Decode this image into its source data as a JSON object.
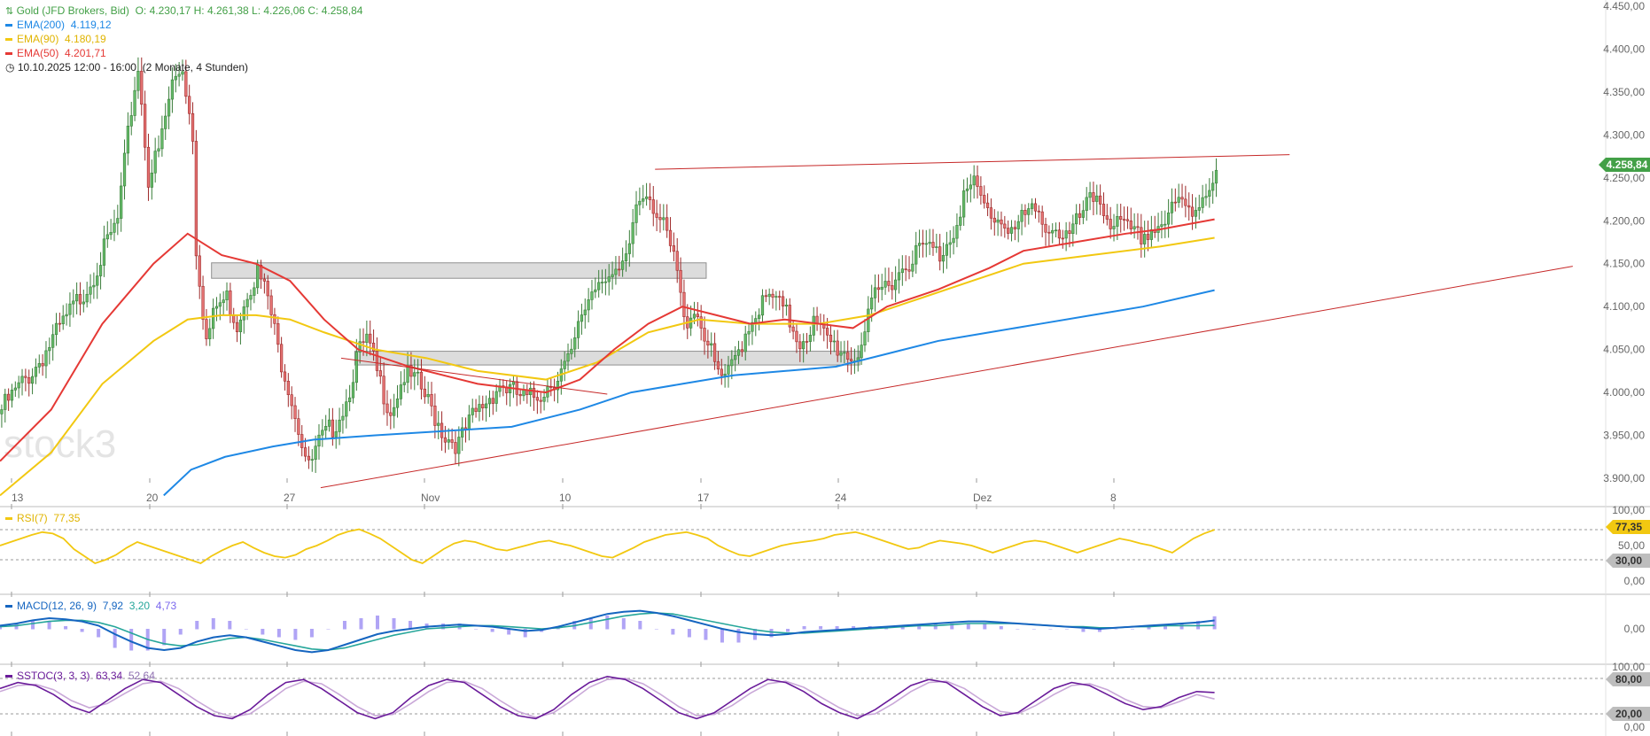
{
  "legend": {
    "instrument": "Gold (JFD Brokers, Bid)",
    "ohlc": "O: 4.230,17  H: 4.261,38  L: 4.226,06  C: 4.258,84",
    "ema200": {
      "label": "EMA(200)",
      "value": "4.119,12",
      "color": "#1e88e5"
    },
    "ema90": {
      "label": "EMA(90)",
      "value": "4.180,19",
      "color": "#f2c811"
    },
    "ema50": {
      "label": "EMA(50)",
      "value": "4.201,71",
      "color": "#e53935"
    },
    "period": "10.10.2025 12:00 - 16:00",
    "span": "(2 Monate, 4 Stunden)"
  },
  "watermark": "stock3",
  "price_badge": "4.258,84",
  "price_labels": [
    "4.450,00",
    "4.400,00",
    "4.350,00",
    "4.300,00",
    "4.250,00",
    "4.200,00",
    "4.150,00",
    "4.100,00",
    "4.050,00",
    "4.000,00",
    "3.950,00",
    "3.900,00"
  ],
  "x_labels": [
    "13",
    "20",
    "27",
    "Nov",
    "10",
    "17",
    "24",
    "Dez",
    "8"
  ],
  "rsi": {
    "label": "RSI(7)",
    "value": "77,35",
    "badge": "77,35",
    "levels": [
      "100,00",
      "50,00",
      "30,00",
      "0,00"
    ],
    "level_badge": "30,00"
  },
  "macd": {
    "label": "MACD(12, 26, 9)",
    "v1": "7,92",
    "v2": "3,20",
    "v3": "4,73",
    "zero": "0,00"
  },
  "sstoc": {
    "label": "SSTOC(3, 3, 3)",
    "v1": "63,34",
    "v2": "52,64",
    "levels": [
      "100,00",
      "80,00",
      "20,00",
      "0,00"
    ]
  },
  "chart_data": {
    "type": "line",
    "title": "Gold (JFD Brokers, Bid)",
    "price_axis": {
      "min": 3900,
      "max": 4450,
      "step": 50,
      "side": "right"
    },
    "x_axis": [
      "13",
      "20",
      "27",
      "Nov",
      "10",
      "17",
      "24",
      "Dez",
      "8"
    ],
    "close_path": [
      [
        0,
        3980
      ],
      [
        10,
        4030
      ],
      [
        18,
        4080
      ],
      [
        26,
        4130
      ],
      [
        34,
        4200
      ],
      [
        38,
        4330
      ],
      [
        40,
        4380
      ],
      [
        43,
        4250
      ],
      [
        46,
        4280
      ],
      [
        50,
        4360
      ],
      [
        53,
        4380
      ],
      [
        56,
        4300
      ],
      [
        57,
        4170
      ],
      [
        60,
        4060
      ],
      [
        63,
        4100
      ],
      [
        66,
        4110
      ],
      [
        69,
        4080
      ],
      [
        72,
        4120
      ],
      [
        75,
        4140
      ],
      [
        78,
        4110
      ],
      [
        81,
        4050
      ],
      [
        84,
        4010
      ],
      [
        87,
        3960
      ],
      [
        90,
        3910
      ],
      [
        93,
        3940
      ],
      [
        97,
        3960
      ],
      [
        101,
        3990
      ],
      [
        104,
        4040
      ],
      [
        107,
        4060
      ],
      [
        111,
        4010
      ],
      [
        114,
        3980
      ],
      [
        118,
        4020
      ],
      [
        122,
        4010
      ],
      [
        126,
        3980
      ],
      [
        130,
        3950
      ],
      [
        134,
        3940
      ],
      [
        138,
        3970
      ],
      [
        142,
        3990
      ],
      [
        146,
        4010
      ],
      [
        150,
        4000
      ],
      [
        154,
        3990
      ],
      [
        158,
        4000
      ],
      [
        163,
        4020
      ],
      [
        167,
        4040
      ],
      [
        170,
        4090
      ],
      [
        173,
        4120
      ],
      [
        176,
        4140
      ],
      [
        180,
        4130
      ],
      [
        183,
        4150
      ],
      [
        186,
        4220
      ],
      [
        189,
        4240
      ],
      [
        192,
        4210
      ],
      [
        195,
        4180
      ],
      [
        198,
        4140
      ],
      [
        200,
        4080
      ],
      [
        203,
        4100
      ],
      [
        206,
        4070
      ],
      [
        209,
        4030
      ],
      [
        212,
        4010
      ],
      [
        215,
        4040
      ],
      [
        219,
        4080
      ],
      [
        222,
        4100
      ],
      [
        226,
        4110
      ],
      [
        230,
        4090
      ],
      [
        234,
        4060
      ],
      [
        238,
        4080
      ],
      [
        242,
        4060
      ],
      [
        246,
        4050
      ],
      [
        250,
        4040
      ],
      [
        253,
        4070
      ],
      [
        256,
        4110
      ],
      [
        260,
        4130
      ],
      [
        263,
        4140
      ],
      [
        267,
        4160
      ],
      [
        271,
        4170
      ],
      [
        275,
        4160
      ],
      [
        279,
        4190
      ],
      [
        282,
        4230
      ],
      [
        285,
        4240
      ],
      [
        289,
        4210
      ],
      [
        293,
        4200
      ],
      [
        297,
        4190
      ],
      [
        301,
        4210
      ],
      [
        305,
        4200
      ],
      [
        309,
        4190
      ],
      [
        313,
        4180
      ],
      [
        317,
        4210
      ],
      [
        321,
        4230
      ],
      [
        325,
        4200
      ],
      [
        329,
        4190
      ],
      [
        333,
        4180
      ],
      [
        337,
        4190
      ],
      [
        341,
        4200
      ],
      [
        345,
        4220
      ],
      [
        349,
        4210
      ],
      [
        352,
        4230
      ],
      [
        356,
        4258.84
      ]
    ],
    "series": [
      {
        "name": "EMA(200)",
        "color": "#1e88e5",
        "points": [
          [
            48,
            3880
          ],
          [
            56,
            3910
          ],
          [
            66,
            3925
          ],
          [
            80,
            3937
          ],
          [
            92,
            3945
          ],
          [
            110,
            3950
          ],
          [
            130,
            3955
          ],
          [
            150,
            3960
          ],
          [
            170,
            3980
          ],
          [
            185,
            4000
          ],
          [
            200,
            4010
          ],
          [
            215,
            4020
          ],
          [
            230,
            4025
          ],
          [
            245,
            4030
          ],
          [
            260,
            4045
          ],
          [
            275,
            4060
          ],
          [
            290,
            4070
          ],
          [
            305,
            4080
          ],
          [
            320,
            4090
          ],
          [
            335,
            4100
          ],
          [
            356,
            4119.12
          ]
        ]
      },
      {
        "name": "EMA(90)",
        "color": "#f2c811",
        "points": [
          [
            0,
            3880
          ],
          [
            15,
            3930
          ],
          [
            30,
            4010
          ],
          [
            45,
            4060
          ],
          [
            55,
            4085
          ],
          [
            65,
            4090
          ],
          [
            75,
            4090
          ],
          [
            85,
            4085
          ],
          [
            95,
            4070
          ],
          [
            110,
            4050
          ],
          [
            125,
            4040
          ],
          [
            140,
            4025
          ],
          [
            160,
            4015
          ],
          [
            175,
            4035
          ],
          [
            190,
            4070
          ],
          [
            205,
            4085
          ],
          [
            220,
            4080
          ],
          [
            240,
            4080
          ],
          [
            255,
            4090
          ],
          [
            270,
            4110
          ],
          [
            285,
            4130
          ],
          [
            300,
            4150
          ],
          [
            320,
            4160
          ],
          [
            340,
            4170
          ],
          [
            356,
            4180.19
          ]
        ]
      },
      {
        "name": "EMA(50)",
        "color": "#e53935",
        "points": [
          [
            0,
            3920
          ],
          [
            15,
            3980
          ],
          [
            30,
            4080
          ],
          [
            45,
            4150
          ],
          [
            55,
            4185
          ],
          [
            65,
            4160
          ],
          [
            75,
            4150
          ],
          [
            85,
            4130
          ],
          [
            95,
            4085
          ],
          [
            105,
            4050
          ],
          [
            120,
            4030
          ],
          [
            140,
            4010
          ],
          [
            160,
            4000
          ],
          [
            170,
            4015
          ],
          [
            180,
            4050
          ],
          [
            190,
            4080
          ],
          [
            200,
            4100
          ],
          [
            210,
            4090
          ],
          [
            220,
            4080
          ],
          [
            230,
            4085
          ],
          [
            240,
            4080
          ],
          [
            250,
            4075
          ],
          [
            260,
            4100
          ],
          [
            275,
            4120
          ],
          [
            290,
            4145
          ],
          [
            300,
            4165
          ],
          [
            315,
            4175
          ],
          [
            330,
            4185
          ],
          [
            340,
            4190
          ],
          [
            356,
            4201.71
          ]
        ]
      }
    ],
    "trendlines": [
      {
        "from": [
          192,
          4260
        ],
        "to": [
          378,
          4277
        ],
        "color": "#c62828"
      },
      {
        "from": [
          94,
          3889
        ],
        "to": [
          461,
          4147
        ],
        "color": "#c62828"
      },
      {
        "from": [
          100,
          4040
        ],
        "to": [
          178,
          3998
        ],
        "color": "#c62828"
      }
    ],
    "zones": [
      {
        "x0": 62,
        "x1": 207,
        "y0": 4133,
        "y1": 4151
      },
      {
        "x0": 104,
        "x1": 252,
        "y0": 4032,
        "y1": 4048
      }
    ],
    "last_close": 4258.84,
    "rsi_series": [
      55,
      60,
      65,
      70,
      74,
      72,
      65,
      50,
      40,
      30,
      35,
      42,
      52,
      60,
      55,
      50,
      45,
      40,
      35,
      30,
      40,
      48,
      55,
      60,
      52,
      45,
      40,
      38,
      42,
      50,
      55,
      62,
      70,
      75,
      78,
      72,
      65,
      55,
      45,
      35,
      30,
      40,
      50,
      58,
      62,
      60,
      55,
      50,
      48,
      52,
      56,
      60,
      62,
      58,
      55,
      50,
      45,
      40,
      38,
      45,
      52,
      60,
      65,
      70,
      72,
      74,
      70,
      65,
      55,
      48,
      42,
      40,
      45,
      50,
      55,
      58,
      60,
      62,
      65,
      70,
      72,
      74,
      70,
      65,
      60,
      55,
      50,
      52,
      58,
      62,
      60,
      58,
      55,
      50,
      45,
      50,
      55,
      60,
      62,
      60,
      55,
      50,
      45,
      50,
      55,
      60,
      65,
      62,
      58,
      55,
      50,
      45,
      55,
      65,
      72,
      77.35
    ],
    "macd_series": [
      3,
      5,
      8,
      10,
      9,
      7,
      3,
      -5,
      -12,
      -18,
      -20,
      -18,
      -12,
      -8,
      -6,
      -8,
      -12,
      -16,
      -20,
      -22,
      -20,
      -15,
      -10,
      -5,
      -2,
      0,
      2,
      3,
      4,
      3,
      2,
      0,
      -2,
      -1,
      2,
      6,
      10,
      14,
      16,
      17,
      15,
      12,
      8,
      4,
      0,
      -3,
      -5,
      -6,
      -5,
      -3,
      -2,
      -1,
      0,
      1,
      2,
      3,
      4,
      5,
      6,
      7,
      7,
      6,
      5,
      4,
      3,
      2,
      1,
      0,
      1,
      2,
      3,
      4,
      5,
      6,
      7.92
    ],
    "macd_signal": [
      2,
      3,
      5,
      7,
      8,
      8,
      6,
      2,
      -4,
      -10,
      -14,
      -16,
      -15,
      -12,
      -9,
      -8,
      -10,
      -13,
      -16,
      -19,
      -20,
      -18,
      -14,
      -10,
      -6,
      -3,
      0,
      1,
      2,
      3,
      3,
      2,
      1,
      0,
      1,
      3,
      6,
      9,
      12,
      14,
      15,
      14,
      11,
      8,
      5,
      2,
      -1,
      -3,
      -4,
      -4,
      -3,
      -2,
      -1,
      0,
      1,
      2,
      3,
      3,
      4,
      5,
      5,
      5,
      5,
      4,
      3,
      2,
      2,
      1,
      1,
      2,
      2,
      3,
      3,
      3,
      3.2
    ],
    "sstoc_series": [
      70,
      80,
      75,
      60,
      40,
      30,
      50,
      70,
      85,
      80,
      60,
      40,
      25,
      20,
      35,
      60,
      80,
      85,
      70,
      50,
      30,
      20,
      30,
      55,
      75,
      85,
      80,
      60,
      40,
      25,
      20,
      35,
      60,
      80,
      90,
      85,
      70,
      50,
      30,
      20,
      30,
      50,
      70,
      85,
      80,
      65,
      45,
      30,
      20,
      35,
      55,
      75,
      85,
      80,
      60,
      40,
      25,
      30,
      50,
      70,
      80,
      75,
      60,
      45,
      35,
      40,
      55,
      65,
      63.34
    ],
    "sstoc_signal": [
      65,
      75,
      77,
      68,
      50,
      38,
      45,
      62,
      78,
      82,
      70,
      50,
      32,
      23,
      28,
      48,
      70,
      82,
      78,
      60,
      40,
      25,
      27,
      45,
      65,
      80,
      82,
      70,
      50,
      32,
      22,
      30,
      50,
      72,
      85,
      87,
      78,
      60,
      40,
      25,
      27,
      42,
      62,
      78,
      82,
      72,
      55,
      38,
      25,
      28,
      45,
      65,
      80,
      82,
      70,
      50,
      32,
      28,
      42,
      60,
      75,
      78,
      68,
      52,
      40,
      38,
      48,
      60,
      52.64
    ]
  }
}
